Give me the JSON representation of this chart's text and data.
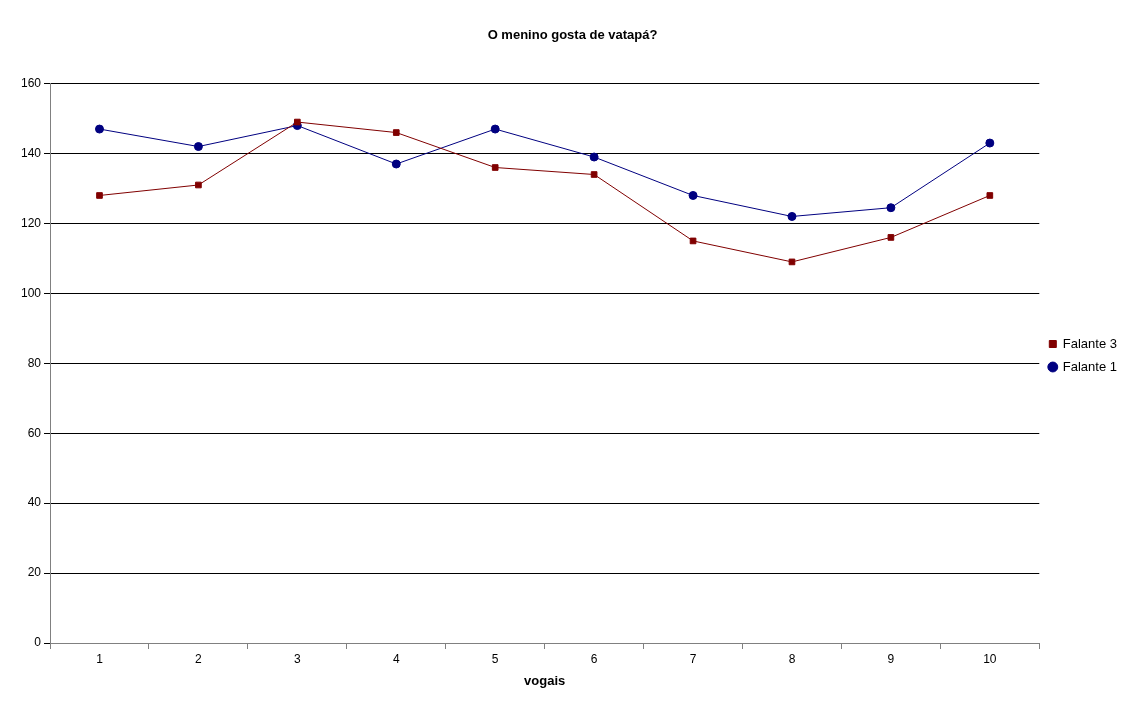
{
  "chart_data": {
    "type": "line",
    "title": "O menino gosta de vatapá?",
    "xlabel": "vogais",
    "categories": [
      "1",
      "2",
      "3",
      "4",
      "5",
      "6",
      "7",
      "8",
      "9",
      "10"
    ],
    "series": [
      {
        "name": "Falante 1",
        "color": "#000080",
        "marker": "circle",
        "values": [
          147,
          142,
          148,
          137,
          147,
          139,
          128,
          122,
          124.5,
          143
        ]
      },
      {
        "name": "Falante 3",
        "color": "#800000",
        "marker": "square",
        "values": [
          128,
          131,
          149,
          146,
          136,
          134,
          115,
          109,
          116,
          128
        ]
      }
    ],
    "ylim": [
      0,
      160
    ],
    "yticks": [
      0,
      20,
      40,
      60,
      80,
      100,
      120,
      140,
      160
    ],
    "grid": "y",
    "legend": "right"
  }
}
